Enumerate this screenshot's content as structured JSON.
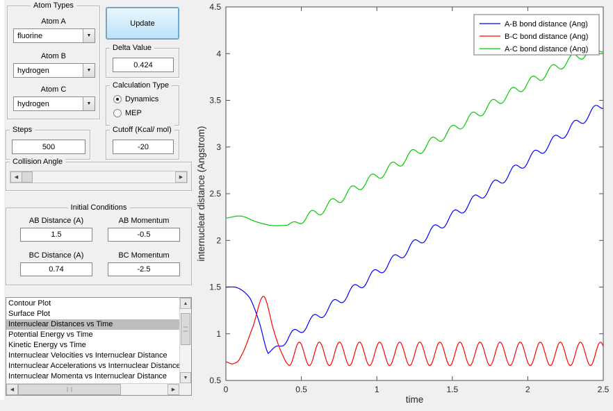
{
  "icons": {
    "dropdown": "▼",
    "scroll_left": "◀",
    "scroll_right": "▶",
    "scroll_up": "▲",
    "scroll_down": "▼"
  },
  "colors": {
    "update_button_fill": "#cfe9f9",
    "selection_gray": "#bdbdbd",
    "series_blue": "#0000ff",
    "series_red": "#ff0000",
    "series_green": "#00cc00"
  },
  "panels": {
    "atom_types": {
      "title": "Atom Types",
      "fields": [
        {
          "label": "Atom A",
          "value": "fluorine"
        },
        {
          "label": "Atom B",
          "value": "hydrogen"
        },
        {
          "label": "Atom C",
          "value": "hydrogen"
        }
      ]
    },
    "update_button_label": "Update",
    "delta": {
      "title": "Delta Value",
      "value": "0.424"
    },
    "calc_type": {
      "title": "Calculation Type",
      "options": [
        {
          "label": "Dynamics",
          "selected": true
        },
        {
          "label": "MEP",
          "selected": false
        }
      ]
    },
    "steps": {
      "title": "Steps",
      "value": "500"
    },
    "cutoff": {
      "title": "Cutoff (Kcal/ mol)",
      "value": "-20"
    },
    "collision_angle": {
      "title": "Collision Angle"
    },
    "initial_conditions": {
      "title": "Initial Conditions",
      "fields": [
        {
          "label": "AB Distance (A)",
          "value": "1.5"
        },
        {
          "label": "AB Momentum",
          "value": "-0.5"
        },
        {
          "label": "BC Distance (A)",
          "value": "0.74"
        },
        {
          "label": "BC Momentum",
          "value": "-2.5"
        }
      ]
    },
    "plot_list": {
      "selected_index": 2,
      "items": [
        "Contour Plot",
        "Surface Plot",
        "Internuclear Distances vs Time",
        "Potential Energy vs Time",
        "Kinetic Energy vs Time",
        "Internuclear Velocities vs Internuclear Distance",
        "Internuclear Accelerations vs Internuclear Distance",
        "Internuclear Momenta vs Internuclear Distance"
      ]
    }
  },
  "chart_data": {
    "type": "line",
    "title": "",
    "xlabel": "time",
    "ylabel": "internuclear distance (Angstrom)",
    "xlim": [
      0,
      2.5
    ],
    "ylim": [
      0.5,
      4.5
    ],
    "xticks": [
      0,
      0.5,
      1,
      1.5,
      2,
      2.5
    ],
    "yticks": [
      0.5,
      1,
      1.5,
      2,
      2.5,
      3,
      3.5,
      4,
      4.5
    ],
    "grid": false,
    "legend_position": "top-right",
    "series": [
      {
        "key": "ab",
        "name": "A-B bond distance (Ang)",
        "color": "#0000ff",
        "model": {
          "pre": [
            [
              0,
              1.5
            ],
            [
              0.08,
              1.49
            ],
            [
              0.16,
              1.38
            ],
            [
              0.22,
              1.13
            ],
            [
              0.28,
              0.79
            ]
          ],
          "base": [
            [
              0.28,
              0.79
            ],
            [
              2.5,
              3.46
            ]
          ],
          "osc": {
            "amp": 0.05,
            "period": 0.133,
            "phase": 0,
            "ramp": true
          }
        }
      },
      {
        "key": "bc",
        "name": "B-C bond distance (Ang)",
        "color": "#ff0000",
        "model": {
          "pre": [
            [
              0,
              0.7
            ],
            [
              0.05,
              0.68
            ],
            [
              0.1,
              0.76
            ],
            [
              0.18,
              1.08
            ],
            [
              0.25,
              1.4
            ],
            [
              0.32,
              1.02
            ],
            [
              0.38,
              0.76
            ],
            [
              0.42,
              0.66
            ]
          ],
          "base": [
            [
              0.42,
              0.785
            ],
            [
              2.5,
              0.785
            ]
          ],
          "osc": {
            "amp": 0.125,
            "period": 0.133,
            "phase": -1.5708,
            "ramp": false
          }
        }
      },
      {
        "key": "ac",
        "name": "A-C bond distance (Ang)",
        "color": "#00cc00",
        "model": {
          "pre": [
            [
              0,
              2.24
            ],
            [
              0.1,
              2.26
            ],
            [
              0.2,
              2.2
            ],
            [
              0.3,
              2.16
            ],
            [
              0.4,
              2.16
            ]
          ],
          "base": [
            [
              0.4,
              2.16
            ],
            [
              0.9,
              2.6
            ],
            [
              1.5,
              3.18
            ],
            [
              2,
              3.68
            ],
            [
              2.5,
              4.07
            ]
          ],
          "osc": {
            "amp": 0.05,
            "period": 0.133,
            "phase": 0,
            "ramp": true
          }
        }
      }
    ]
  }
}
